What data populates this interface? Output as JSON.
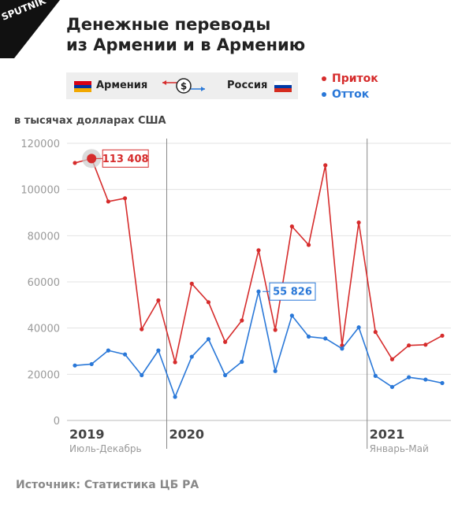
{
  "brand": {
    "name": "SPUTNIK"
  },
  "title": {
    "line1": "Денежные переводы",
    "line2": "из Армении и в Армению"
  },
  "flag_bar": {
    "left_label": "Армения",
    "right_label": "Россия",
    "currency_symbol": "$"
  },
  "legend": [
    {
      "label": "Приток",
      "color": "#d62c2c"
    },
    {
      "label": "Отток",
      "color": "#2a78d8"
    }
  ],
  "units_label": "в тысячах долларах США",
  "source": "Источник: Статистика ЦБ РА",
  "chart_data": {
    "type": "line",
    "ylim": [
      0,
      120000
    ],
    "y_ticks": [
      "0",
      "20000",
      "40000",
      "60000",
      "80000",
      "100000",
      "120000"
    ],
    "y_tick_values": [
      0,
      20000,
      40000,
      60000,
      80000,
      100000,
      120000
    ],
    "x_count": 23,
    "periods": [
      {
        "year": "2019",
        "sub": "Июль-Декабрь",
        "start": 0
      },
      {
        "year": "2020",
        "sub": "",
        "start": 6
      },
      {
        "year": "2021",
        "sub": "Январь-Май",
        "start": 18
      }
    ],
    "series": [
      {
        "name": "Приток",
        "color": "#d62c2c",
        "values": [
          111500,
          113408,
          94800,
          96200,
          39500,
          52000,
          25200,
          59200,
          51200,
          34000,
          43300,
          73700,
          39200,
          84000,
          76000,
          110500,
          32500,
          85700,
          38300,
          26500,
          32500,
          32800,
          36700
        ]
      },
      {
        "name": "Отток",
        "color": "#2a78d8",
        "values": [
          23800,
          24400,
          30300,
          28600,
          19600,
          30300,
          10200,
          27600,
          35200,
          19600,
          25400,
          55826,
          21400,
          45400,
          36300,
          35500,
          31100,
          40300,
          19300,
          14500,
          18700,
          17700,
          16200
        ]
      }
    ],
    "annotations": [
      {
        "series": 0,
        "index": 1,
        "label": "113 408"
      },
      {
        "series": 1,
        "index": 11,
        "label": "55 826"
      }
    ]
  }
}
